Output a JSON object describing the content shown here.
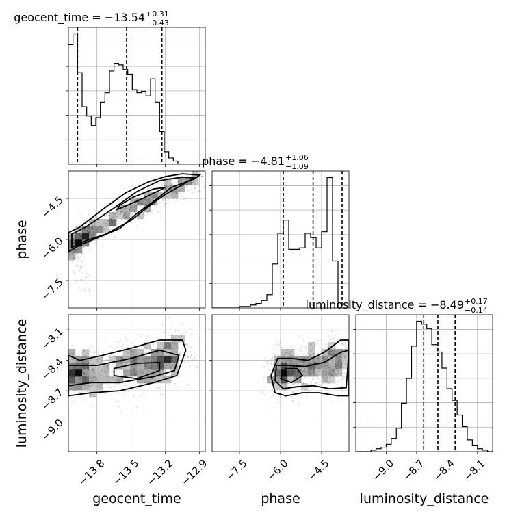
{
  "chart_data": {
    "type": "corner",
    "parameters": [
      {
        "key": "geocent_time",
        "label": "geocent_time",
        "title_base": "geocent_time = −13.54",
        "title_plus": "+0.31",
        "title_minus": "−0.43",
        "range": [
          -14.05,
          -12.85
        ],
        "ticks": [
          -13.8,
          -13.5,
          -13.2,
          -12.9
        ],
        "tick_labels": [
          "−13.8",
          "−13.5",
          "−13.2",
          "−12.9"
        ],
        "quantiles": [
          -13.97,
          -13.54,
          -13.23
        ]
      },
      {
        "key": "phase",
        "label": "phase",
        "title_base": "phase = −4.81",
        "title_plus": "+1.06",
        "title_minus": "−1.09",
        "range": [
          -8.5,
          -3.5
        ],
        "ticks": [
          -7.5,
          -6.0,
          -4.5
        ],
        "tick_labels": [
          "−7.5",
          "−6.0",
          "−4.5"
        ],
        "quantiles": [
          -5.9,
          -4.81,
          -3.75
        ]
      },
      {
        "key": "luminosity_distance",
        "label": "luminosity_distance",
        "title_base": "luminosity_distance = −8.49",
        "title_plus": "+0.17",
        "title_minus": "−0.14",
        "range": [
          -9.3,
          -7.95
        ],
        "ticks": [
          -9.0,
          -8.7,
          -8.4,
          -8.1
        ],
        "tick_labels": [
          "−9.0",
          "−8.7",
          "−8.4",
          "−8.1"
        ],
        "quantiles": [
          -8.63,
          -8.49,
          -8.32
        ]
      }
    ],
    "histograms": {
      "geocent_time": {
        "edges": [
          -14.05,
          -14.01,
          -13.97,
          -13.93,
          -13.89,
          -13.85,
          -13.81,
          -13.77,
          -13.73,
          -13.69,
          -13.65,
          -13.61,
          -13.57,
          -13.53,
          -13.49,
          -13.45,
          -13.41,
          -13.37,
          -13.33,
          -13.29,
          -13.25,
          -13.21,
          -13.17,
          -13.13,
          -13.09,
          -13.05,
          -13.01,
          -12.97,
          -12.93,
          -12.89,
          -12.85
        ],
        "counts": [
          0.77,
          0.84,
          0.59,
          0.37,
          0.31,
          0.25,
          0.3,
          0.4,
          0.46,
          0.6,
          0.65,
          0.64,
          0.61,
          0.58,
          0.48,
          0.46,
          0.47,
          0.44,
          0.55,
          0.4,
          0.21,
          0.08,
          0.04,
          0.02,
          0.0,
          0.0,
          0.0,
          0.0,
          0.0,
          0.0
        ]
      },
      "phase": {
        "edges": [
          -8.5,
          -8.3,
          -8.1,
          -7.9,
          -7.7,
          -7.5,
          -7.3,
          -7.1,
          -6.9,
          -6.7,
          -6.5,
          -6.3,
          -6.1,
          -5.9,
          -5.7,
          -5.5,
          -5.3,
          -5.1,
          -4.9,
          -4.7,
          -4.5,
          -4.3,
          -4.1,
          -3.9,
          -3.7,
          -3.5
        ],
        "counts": [
          0.0,
          0.0,
          0.0,
          0.0,
          0.0,
          0.01,
          0.01,
          0.02,
          0.03,
          0.05,
          0.09,
          0.3,
          0.51,
          0.6,
          0.4,
          0.4,
          0.41,
          0.51,
          0.48,
          0.41,
          0.52,
          0.89,
          0.32,
          0.0,
          0.0
        ]
      },
      "luminosity_distance": {
        "edges": [
          -9.3,
          -9.25,
          -9.2,
          -9.15,
          -9.1,
          -9.05,
          -9.0,
          -8.95,
          -8.9,
          -8.85,
          -8.8,
          -8.75,
          -8.7,
          -8.65,
          -8.6,
          -8.55,
          -8.5,
          -8.45,
          -8.4,
          -8.35,
          -8.3,
          -8.25,
          -8.2,
          -8.15,
          -8.1,
          -8.05,
          -8.0,
          -7.95
        ],
        "counts": [
          0.0,
          0.0,
          0.0,
          0.01,
          0.02,
          0.03,
          0.05,
          0.09,
          0.16,
          0.33,
          0.5,
          0.72,
          0.89,
          0.87,
          0.84,
          0.73,
          0.68,
          0.57,
          0.43,
          0.35,
          0.25,
          0.17,
          0.08,
          0.04,
          0.02,
          0.01,
          0.0
        ]
      }
    },
    "pairs": [
      {
        "x": "geocent_time",
        "y": "phase"
      },
      {
        "x": "geocent_time",
        "y": "luminosity_distance"
      },
      {
        "x": "phase",
        "y": "luminosity_distance"
      }
    ],
    "density_samples": {
      "geocent_time|phase": {
        "n": 900,
        "segments": [
          {
            "x0": -14.05,
            "y0": -6.35,
            "x1": -13.85,
            "y1": -5.7,
            "sx": 0.05,
            "sy": 0.18,
            "w": 0.3
          },
          {
            "x0": -13.85,
            "y0": -5.7,
            "x1": -13.35,
            "y1": -4.55,
            "sx": 0.07,
            "sy": 0.22,
            "w": 0.35
          },
          {
            "x0": -13.35,
            "y0": -4.55,
            "x1": -12.95,
            "y1": -3.8,
            "sx": 0.08,
            "sy": 0.2,
            "w": 0.3
          },
          {
            "x0": -14.0,
            "y0": -6.2,
            "x1": -13.9,
            "y1": -8.0,
            "sx": 0.03,
            "sy": 0.2,
            "w": 0.05
          }
        ]
      },
      "geocent_time|luminosity_distance": {
        "n": 900,
        "segments": [
          {
            "x0": -14.05,
            "y0": -8.55,
            "x1": -13.85,
            "y1": -8.5,
            "sx": 0.07,
            "sy": 0.12,
            "w": 0.35
          },
          {
            "x0": -13.7,
            "y0": -8.55,
            "x1": -13.3,
            "y1": -8.4,
            "sx": 0.12,
            "sy": 0.13,
            "w": 0.4
          },
          {
            "x0": -13.3,
            "y0": -8.45,
            "x1": -13.05,
            "y1": -8.3,
            "sx": 0.09,
            "sy": 0.12,
            "w": 0.25
          }
        ]
      },
      "phase|luminosity_distance": {
        "n": 900,
        "segments": [
          {
            "x0": -6.1,
            "y0": -8.55,
            "x1": -5.7,
            "y1": -8.5,
            "sx": 0.25,
            "sy": 0.11,
            "w": 0.35
          },
          {
            "x0": -5.6,
            "y0": -8.5,
            "x1": -4.6,
            "y1": -8.45,
            "sx": 0.3,
            "sy": 0.12,
            "w": 0.35
          },
          {
            "x0": -4.4,
            "y0": -8.45,
            "x1": -3.6,
            "y1": -8.4,
            "sx": 0.25,
            "sy": 0.11,
            "w": 0.3
          }
        ]
      }
    },
    "contours": {
      "geocent_time|phase": [
        [
          [
            -14.05,
            -6.45
          ],
          [
            -13.95,
            -6.2
          ],
          [
            -13.8,
            -5.95
          ],
          [
            -13.6,
            -5.6
          ],
          [
            -13.45,
            -5.05
          ],
          [
            -13.3,
            -4.6
          ],
          [
            -13.15,
            -4.1
          ],
          [
            -12.95,
            -3.8
          ],
          [
            -12.9,
            -3.65
          ],
          [
            -13.05,
            -3.6
          ],
          [
            -13.2,
            -3.7
          ],
          [
            -13.35,
            -3.9
          ],
          [
            -13.55,
            -4.3
          ],
          [
            -13.75,
            -4.9
          ],
          [
            -13.95,
            -5.55
          ],
          [
            -14.05,
            -5.75
          ]
        ],
        [
          [
            -14.02,
            -6.3
          ],
          [
            -13.9,
            -6.05
          ],
          [
            -13.72,
            -5.8
          ],
          [
            -13.5,
            -5.3
          ],
          [
            -13.35,
            -4.8
          ],
          [
            -13.2,
            -4.35
          ],
          [
            -13.05,
            -4.0
          ],
          [
            -12.95,
            -3.75
          ],
          [
            -13.05,
            -3.72
          ],
          [
            -13.25,
            -3.85
          ],
          [
            -13.45,
            -4.25
          ],
          [
            -13.65,
            -4.85
          ],
          [
            -13.9,
            -5.55
          ],
          [
            -14.02,
            -5.8
          ]
        ],
        [
          [
            -13.62,
            -4.9
          ],
          [
            -13.45,
            -4.6
          ],
          [
            -13.3,
            -4.3
          ],
          [
            -13.2,
            -4.1
          ],
          [
            -13.3,
            -4.15
          ],
          [
            -13.48,
            -4.45
          ],
          [
            -13.6,
            -4.75
          ]
        ]
      ],
      "geocent_time|luminosity_distance": [
        [
          [
            -14.05,
            -8.75
          ],
          [
            -13.85,
            -8.72
          ],
          [
            -13.6,
            -8.7
          ],
          [
            -13.3,
            -8.62
          ],
          [
            -13.1,
            -8.55
          ],
          [
            -13.02,
            -8.3
          ],
          [
            -13.05,
            -8.2
          ],
          [
            -13.25,
            -8.2
          ],
          [
            -13.5,
            -8.28
          ],
          [
            -13.75,
            -8.35
          ],
          [
            -13.95,
            -8.4
          ],
          [
            -14.05,
            -8.35
          ]
        ],
        [
          [
            -14.05,
            -8.65
          ],
          [
            -13.85,
            -8.62
          ],
          [
            -13.6,
            -8.62
          ],
          [
            -13.3,
            -8.56
          ],
          [
            -13.12,
            -8.5
          ],
          [
            -13.08,
            -8.35
          ],
          [
            -13.25,
            -8.3
          ],
          [
            -13.5,
            -8.38
          ],
          [
            -13.8,
            -8.45
          ],
          [
            -14.05,
            -8.45
          ]
        ],
        [
          [
            -13.65,
            -8.55
          ],
          [
            -13.45,
            -8.58
          ],
          [
            -13.25,
            -8.5
          ],
          [
            -13.25,
            -8.42
          ],
          [
            -13.45,
            -8.43
          ],
          [
            -13.65,
            -8.48
          ]
        ]
      ],
      "phase|luminosity_distance": [
        [
          [
            -6.35,
            -8.55
          ],
          [
            -6.2,
            -8.72
          ],
          [
            -5.8,
            -8.75
          ],
          [
            -5.2,
            -8.72
          ],
          [
            -4.6,
            -8.72
          ],
          [
            -3.9,
            -8.75
          ],
          [
            -3.5,
            -8.75
          ],
          [
            -3.5,
            -8.2
          ],
          [
            -3.8,
            -8.2
          ],
          [
            -4.4,
            -8.32
          ],
          [
            -5.0,
            -8.4
          ],
          [
            -5.6,
            -8.38
          ],
          [
            -6.1,
            -8.38
          ]
        ],
        [
          [
            -6.2,
            -8.6
          ],
          [
            -5.9,
            -8.68
          ],
          [
            -5.4,
            -8.66
          ],
          [
            -4.8,
            -8.65
          ],
          [
            -4.2,
            -8.68
          ],
          [
            -3.6,
            -8.67
          ],
          [
            -3.5,
            -8.3
          ],
          [
            -3.8,
            -8.32
          ],
          [
            -4.4,
            -8.42
          ],
          [
            -5.1,
            -8.46
          ],
          [
            -5.8,
            -8.45
          ],
          [
            -6.15,
            -8.45
          ]
        ],
        [
          [
            -6.0,
            -8.58
          ],
          [
            -5.6,
            -8.62
          ],
          [
            -5.2,
            -8.55
          ],
          [
            -5.4,
            -8.48
          ],
          [
            -5.8,
            -8.48
          ]
        ]
      ]
    },
    "grid": true,
    "bins_2d": 20
  }
}
